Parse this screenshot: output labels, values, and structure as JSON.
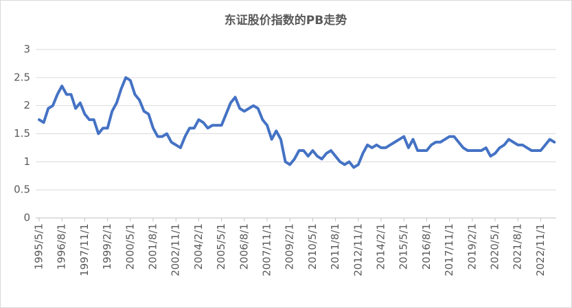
{
  "chart_data": {
    "type": "line",
    "title": "东证股价指数的PB走势",
    "categories": [
      "1995/5/1",
      null,
      null,
      null,
      null,
      "1996/8/1",
      null,
      null,
      null,
      null,
      "1997/11/1",
      null,
      null,
      null,
      null,
      "1999/2/1",
      null,
      null,
      null,
      null,
      "2000/5/1",
      null,
      null,
      null,
      null,
      "2001/8/1",
      null,
      null,
      null,
      null,
      "2002/11/1",
      null,
      null,
      null,
      null,
      "2004/2/1",
      null,
      null,
      null,
      null,
      "2005/5/1",
      null,
      null,
      null,
      null,
      "2006/8/1",
      null,
      null,
      null,
      null,
      "2007/11/1",
      null,
      null,
      null,
      null,
      "2009/2/1",
      null,
      null,
      null,
      null,
      "2010/5/1",
      null,
      null,
      null,
      null,
      "2011/8/1",
      null,
      null,
      null,
      null,
      "2012/11/1",
      null,
      null,
      null,
      null,
      "2014/2/1",
      null,
      null,
      null,
      null,
      "2015/5/1",
      null,
      null,
      null,
      null,
      "2016/8/1",
      null,
      null,
      null,
      null,
      "2017/11/1",
      null,
      null,
      null,
      null,
      "2019/2/1",
      null,
      null,
      null,
      null,
      "2020/5/1",
      null,
      null,
      null,
      null,
      "2021/8/1",
      null,
      null,
      null,
      null,
      "2022/11/1",
      null,
      null,
      null
    ],
    "series": [
      {
        "name": "PB",
        "color": "#4472c4",
        "values": [
          1.75,
          1.7,
          1.95,
          2.0,
          2.2,
          2.35,
          2.2,
          2.2,
          1.95,
          2.05,
          1.85,
          1.75,
          1.75,
          1.5,
          1.6,
          1.6,
          1.9,
          2.05,
          2.3,
          2.5,
          2.45,
          2.2,
          2.1,
          1.9,
          1.85,
          1.6,
          1.45,
          1.45,
          1.5,
          1.35,
          1.3,
          1.25,
          1.45,
          1.6,
          1.6,
          1.75,
          1.7,
          1.6,
          1.65,
          1.65,
          1.65,
          1.85,
          2.05,
          2.15,
          1.95,
          1.9,
          1.95,
          2.0,
          1.95,
          1.75,
          1.65,
          1.4,
          1.55,
          1.4,
          1.0,
          0.95,
          1.05,
          1.2,
          1.2,
          1.1,
          1.2,
          1.1,
          1.05,
          1.15,
          1.2,
          1.1,
          1.0,
          0.95,
          1.0,
          0.9,
          0.95,
          1.15,
          1.3,
          1.25,
          1.3,
          1.25,
          1.25,
          1.3,
          1.35,
          1.4,
          1.45,
          1.25,
          1.4,
          1.2,
          1.2,
          1.2,
          1.3,
          1.35,
          1.35,
          1.4,
          1.45,
          1.45,
          1.35,
          1.25,
          1.2,
          1.2,
          1.2,
          1.2,
          1.25,
          1.1,
          1.15,
          1.25,
          1.3,
          1.4,
          1.35,
          1.3,
          1.3,
          1.25,
          1.2,
          1.2,
          1.2,
          1.3,
          1.4,
          1.35
        ]
      }
    ],
    "ylim": [
      0,
      3
    ],
    "yticks": [
      0,
      0.5,
      1,
      1.5,
      2,
      2.5,
      3
    ],
    "grid": true
  }
}
